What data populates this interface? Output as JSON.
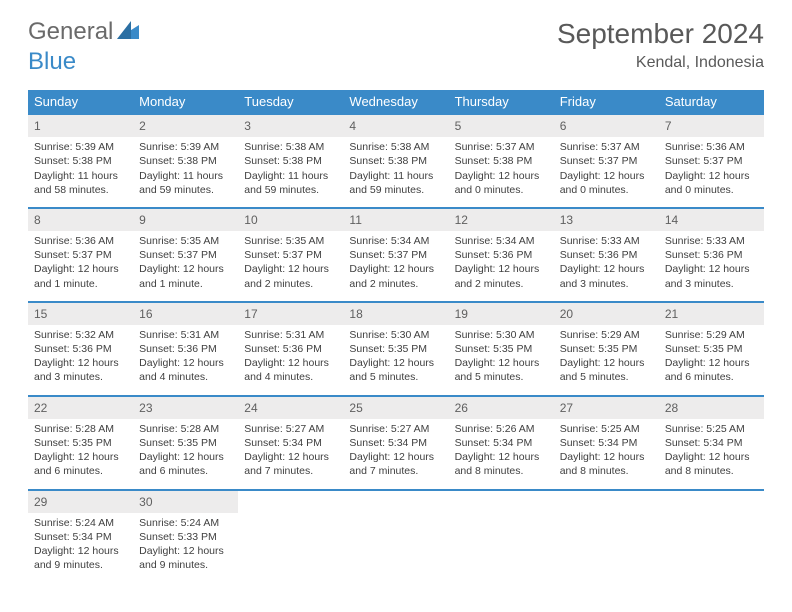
{
  "brand": {
    "part1": "General",
    "part2": "Blue"
  },
  "title": "September 2024",
  "location": "Kendal, Indonesia",
  "columns": [
    "Sunday",
    "Monday",
    "Tuesday",
    "Wednesday",
    "Thursday",
    "Friday",
    "Saturday"
  ],
  "colors": {
    "header_bg": "#3a8ac8",
    "header_text": "#ffffff",
    "daynum_bg": "#edecec",
    "border": "#3a8ac8",
    "title_color": "#595959",
    "logo_gray": "#6a6a6a",
    "logo_blue": "#3a8ac8"
  },
  "weeks": [
    [
      {
        "n": "1",
        "sr": "5:39 AM",
        "ss": "5:38 PM",
        "dl": "11 hours and 58 minutes."
      },
      {
        "n": "2",
        "sr": "5:39 AM",
        "ss": "5:38 PM",
        "dl": "11 hours and 59 minutes."
      },
      {
        "n": "3",
        "sr": "5:38 AM",
        "ss": "5:38 PM",
        "dl": "11 hours and 59 minutes."
      },
      {
        "n": "4",
        "sr": "5:38 AM",
        "ss": "5:38 PM",
        "dl": "11 hours and 59 minutes."
      },
      {
        "n": "5",
        "sr": "5:37 AM",
        "ss": "5:38 PM",
        "dl": "12 hours and 0 minutes."
      },
      {
        "n": "6",
        "sr": "5:37 AM",
        "ss": "5:37 PM",
        "dl": "12 hours and 0 minutes."
      },
      {
        "n": "7",
        "sr": "5:36 AM",
        "ss": "5:37 PM",
        "dl": "12 hours and 0 minutes."
      }
    ],
    [
      {
        "n": "8",
        "sr": "5:36 AM",
        "ss": "5:37 PM",
        "dl": "12 hours and 1 minute."
      },
      {
        "n": "9",
        "sr": "5:35 AM",
        "ss": "5:37 PM",
        "dl": "12 hours and 1 minute."
      },
      {
        "n": "10",
        "sr": "5:35 AM",
        "ss": "5:37 PM",
        "dl": "12 hours and 2 minutes."
      },
      {
        "n": "11",
        "sr": "5:34 AM",
        "ss": "5:37 PM",
        "dl": "12 hours and 2 minutes."
      },
      {
        "n": "12",
        "sr": "5:34 AM",
        "ss": "5:36 PM",
        "dl": "12 hours and 2 minutes."
      },
      {
        "n": "13",
        "sr": "5:33 AM",
        "ss": "5:36 PM",
        "dl": "12 hours and 3 minutes."
      },
      {
        "n": "14",
        "sr": "5:33 AM",
        "ss": "5:36 PM",
        "dl": "12 hours and 3 minutes."
      }
    ],
    [
      {
        "n": "15",
        "sr": "5:32 AM",
        "ss": "5:36 PM",
        "dl": "12 hours and 3 minutes."
      },
      {
        "n": "16",
        "sr": "5:31 AM",
        "ss": "5:36 PM",
        "dl": "12 hours and 4 minutes."
      },
      {
        "n": "17",
        "sr": "5:31 AM",
        "ss": "5:36 PM",
        "dl": "12 hours and 4 minutes."
      },
      {
        "n": "18",
        "sr": "5:30 AM",
        "ss": "5:35 PM",
        "dl": "12 hours and 5 minutes."
      },
      {
        "n": "19",
        "sr": "5:30 AM",
        "ss": "5:35 PM",
        "dl": "12 hours and 5 minutes."
      },
      {
        "n": "20",
        "sr": "5:29 AM",
        "ss": "5:35 PM",
        "dl": "12 hours and 5 minutes."
      },
      {
        "n": "21",
        "sr": "5:29 AM",
        "ss": "5:35 PM",
        "dl": "12 hours and 6 minutes."
      }
    ],
    [
      {
        "n": "22",
        "sr": "5:28 AM",
        "ss": "5:35 PM",
        "dl": "12 hours and 6 minutes."
      },
      {
        "n": "23",
        "sr": "5:28 AM",
        "ss": "5:35 PM",
        "dl": "12 hours and 6 minutes."
      },
      {
        "n": "24",
        "sr": "5:27 AM",
        "ss": "5:34 PM",
        "dl": "12 hours and 7 minutes."
      },
      {
        "n": "25",
        "sr": "5:27 AM",
        "ss": "5:34 PM",
        "dl": "12 hours and 7 minutes."
      },
      {
        "n": "26",
        "sr": "5:26 AM",
        "ss": "5:34 PM",
        "dl": "12 hours and 8 minutes."
      },
      {
        "n": "27",
        "sr": "5:25 AM",
        "ss": "5:34 PM",
        "dl": "12 hours and 8 minutes."
      },
      {
        "n": "28",
        "sr": "5:25 AM",
        "ss": "5:34 PM",
        "dl": "12 hours and 8 minutes."
      }
    ],
    [
      {
        "n": "29",
        "sr": "5:24 AM",
        "ss": "5:34 PM",
        "dl": "12 hours and 9 minutes."
      },
      {
        "n": "30",
        "sr": "5:24 AM",
        "ss": "5:33 PM",
        "dl": "12 hours and 9 minutes."
      },
      null,
      null,
      null,
      null,
      null
    ]
  ]
}
